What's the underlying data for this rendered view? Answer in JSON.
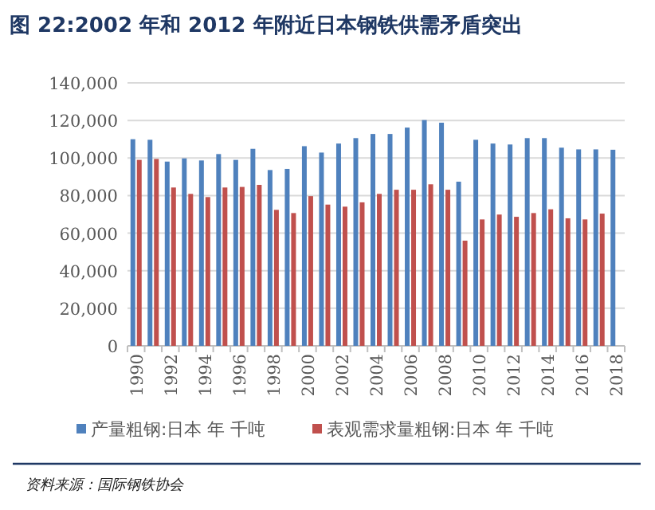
{
  "chart_data": {
    "type": "bar",
    "title": "图 22:2002 年和 2012 年附近日本钢铁供需矛盾突出",
    "categories": [
      "1990",
      null,
      "1992",
      null,
      "1994",
      null,
      "1996",
      null,
      "1998",
      null,
      "2000",
      null,
      "2002",
      null,
      "2004",
      null,
      "2006",
      null,
      "2008",
      null,
      "2010",
      null,
      "2012",
      null,
      "2014",
      null,
      "2016",
      null,
      "2018"
    ],
    "series": [
      {
        "name": "产量粗钢:日本 年 千吨",
        "color": "#4f81bd",
        "values": [
          110000,
          109700,
          98100,
          99800,
          98700,
          102100,
          99000,
          104900,
          93600,
          94200,
          106300,
          102900,
          107700,
          110600,
          112800,
          112800,
          116200,
          120200,
          118800,
          87400,
          109700,
          107700,
          107200,
          110600,
          110600,
          105500,
          104600,
          104600,
          104400
        ]
      },
      {
        "name": "表观需求量粗钢:日本 年 千吨",
        "color": "#c0504d",
        "values": [
          99000,
          99500,
          84300,
          80900,
          79200,
          84300,
          84600,
          85700,
          72400,
          70700,
          79700,
          75200,
          74100,
          76400,
          80900,
          83100,
          83100,
          86000,
          83100,
          56000,
          67300,
          69900,
          68700,
          70700,
          72700,
          67900,
          67300,
          70400,
          null
        ]
      }
    ],
    "ylim": [
      0,
      140000
    ],
    "yticks": [
      {
        "value": 0,
        "label": "0"
      },
      {
        "value": 20000,
        "label": "20,000"
      },
      {
        "value": 40000,
        "label": "40,000"
      },
      {
        "value": 60000,
        "label": "60,000"
      },
      {
        "value": 80000,
        "label": "80,000"
      },
      {
        "value": 100000,
        "label": "100,000"
      },
      {
        "value": 120000,
        "label": "120,000"
      },
      {
        "value": 140000,
        "label": "140,000"
      }
    ],
    "grid": "y",
    "legend": "bottom",
    "annotations": [
      "资料来源：国际钢铁协会"
    ]
  }
}
